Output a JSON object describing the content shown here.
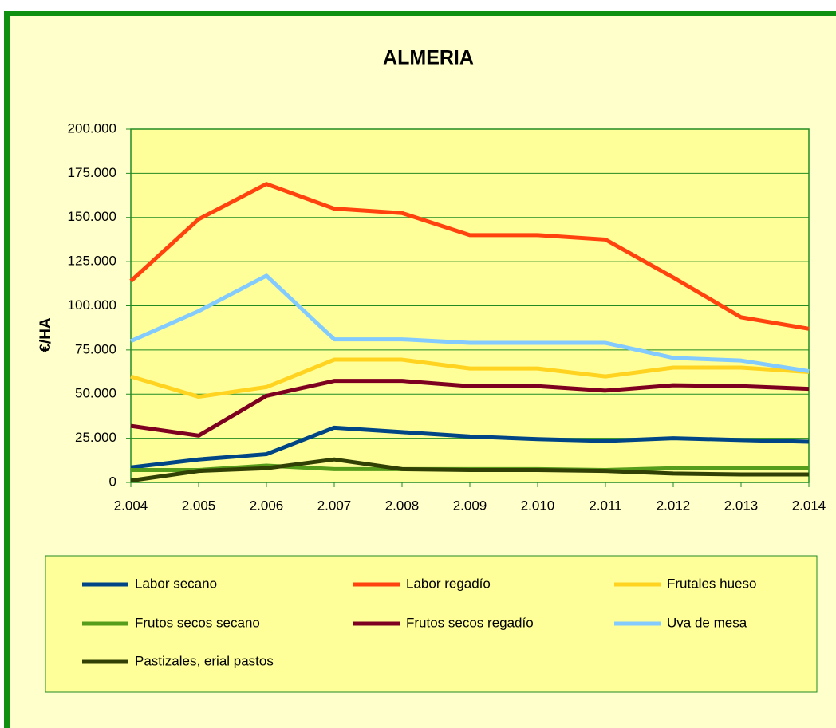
{
  "chart_data": {
    "type": "line",
    "title": "ALMERIA",
    "y_label": "€/HA",
    "categories": [
      "2.004",
      "2.005",
      "2.006",
      "2.007",
      "2.008",
      "2.009",
      "2.010",
      "2.011",
      "2.012",
      "2.013",
      "2.014"
    ],
    "series": [
      {
        "name": "Labor secano",
        "color": "#004586",
        "values": [
          8500,
          13000,
          16000,
          31000,
          28500,
          26000,
          24500,
          23500,
          25000,
          24000,
          23000
        ]
      },
      {
        "name": "Labor regadío",
        "color": "#ff420e",
        "values": [
          114000,
          149000,
          169000,
          155000,
          152500,
          140000,
          140000,
          137500,
          116000,
          93500,
          87000
        ]
      },
      {
        "name": "Frutales hueso",
        "color": "#ffd320",
        "values": [
          60000,
          48500,
          54000,
          69500,
          69500,
          64500,
          64500,
          60000,
          65000,
          65000,
          62500
        ]
      },
      {
        "name": "Frutos secos secano",
        "color": "#579d1c",
        "values": [
          7000,
          7000,
          9500,
          7500,
          7500,
          7500,
          7500,
          7000,
          8000,
          8000,
          8000
        ]
      },
      {
        "name": "Frutos secos regadío",
        "color": "#7e0021",
        "values": [
          32000,
          26500,
          49000,
          57500,
          57500,
          54500,
          54500,
          52000,
          55000,
          54500,
          53000
        ]
      },
      {
        "name": "Uva de mesa",
        "color": "#83caff",
        "values": [
          80000,
          97000,
          117000,
          81000,
          81000,
          79000,
          79000,
          79000,
          70500,
          69000,
          63000
        ]
      },
      {
        "name": "Pastizales, erial pastos",
        "color": "#314004",
        "values": [
          1000,
          6500,
          8000,
          13000,
          7500,
          7000,
          7000,
          6500,
          5000,
          4500,
          4500
        ]
      }
    ],
    "ylim": [
      0,
      200000
    ],
    "yticks": [
      0,
      {
        "value": 25000,
        "label": "25.000"
      },
      {
        "value": 50000,
        "label": "50.000"
      },
      {
        "value": 75000,
        "label": "75.000"
      },
      {
        "value": 100000,
        "label": "100.000"
      },
      {
        "value": 125000,
        "label": "125.000"
      },
      {
        "value": 150000,
        "label": "150.000"
      },
      {
        "value": 175000,
        "label": "175.000"
      },
      {
        "value": 200000,
        "label": "200.000"
      }
    ],
    "grid": true,
    "legend": "bottom"
  }
}
